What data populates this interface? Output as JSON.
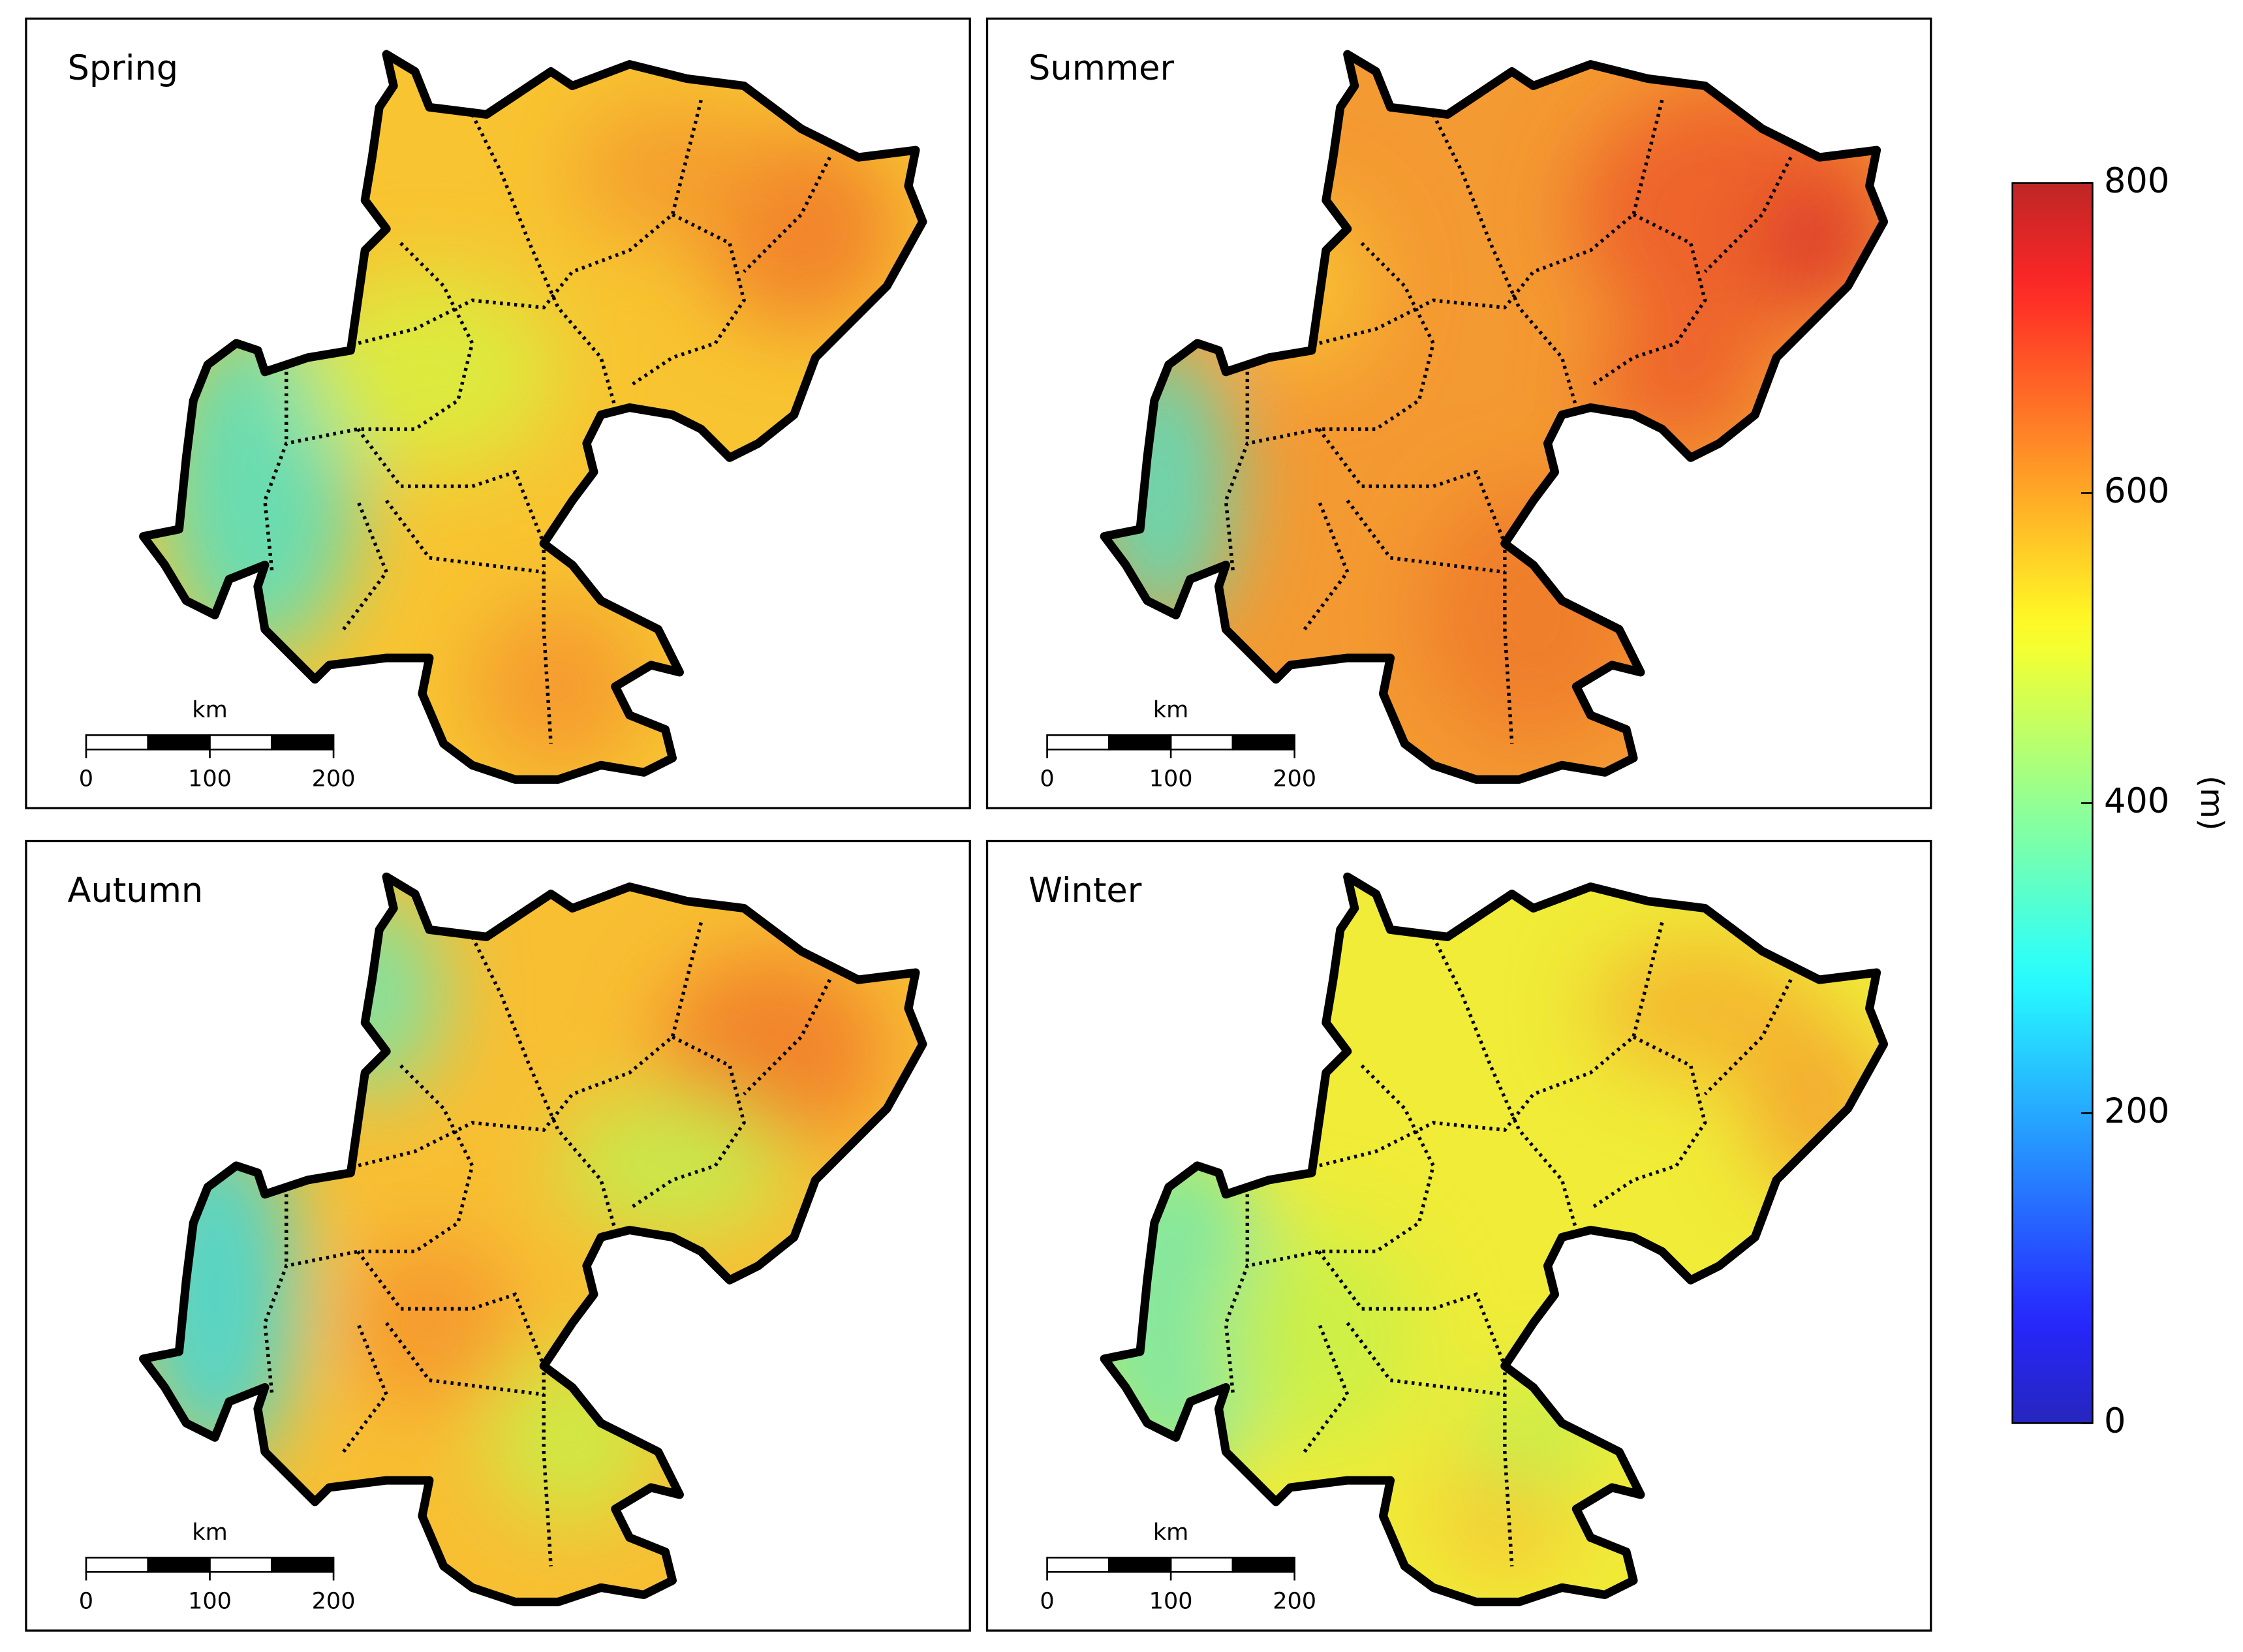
{
  "panels": [
    {
      "title": "Spring"
    },
    {
      "title": "Summer"
    },
    {
      "title": "Autumn"
    },
    {
      "title": "Winter"
    }
  ],
  "scale_bar": {
    "unit": "km",
    "ticks": [
      0,
      100,
      200
    ]
  },
  "colorbar": {
    "label": "(m)",
    "lim": [
      0,
      800
    ],
    "ticks": [
      0,
      200,
      400,
      600,
      800
    ],
    "colormap": "jet"
  }
}
